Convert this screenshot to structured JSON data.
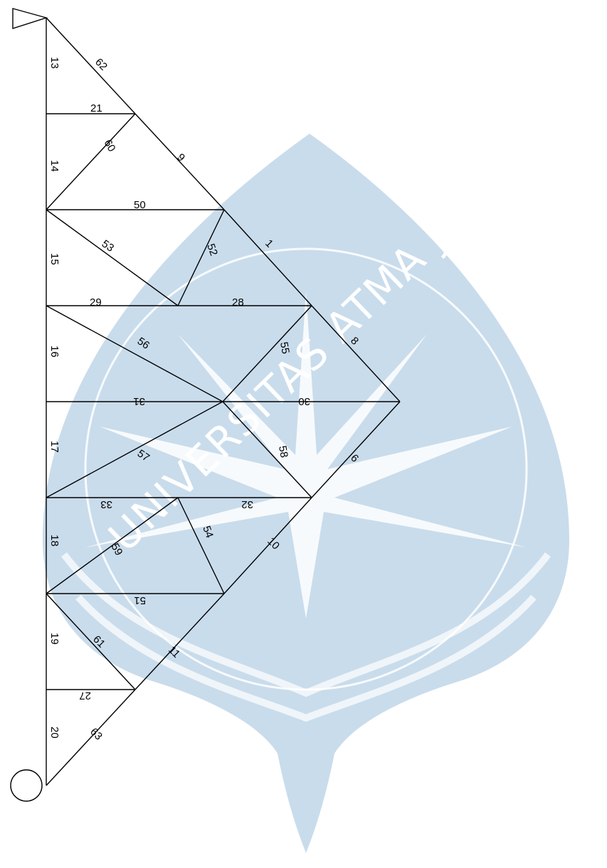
{
  "watermark": {
    "text": "UNIVERSITAS ATMA JAYA YOGYAKARTA",
    "color": "#c9dcec"
  },
  "colors": {
    "line": "#000000",
    "background": "#ffffff"
  },
  "members": [
    {
      "id": "m-13",
      "label": "13",
      "rot": 90
    },
    {
      "id": "m-62",
      "label": "62",
      "rot": 45
    },
    {
      "id": "m-21",
      "label": "21",
      "rot": 0
    },
    {
      "id": "m-14",
      "label": "14",
      "rot": 90
    },
    {
      "id": "m-60",
      "label": "60",
      "rot": 60
    },
    {
      "id": "m-9",
      "label": "9",
      "rot": 45
    },
    {
      "id": "m-50",
      "label": "50",
      "rot": 0
    },
    {
      "id": "m-15",
      "label": "15",
      "rot": 90
    },
    {
      "id": "m-53",
      "label": "53",
      "rot": 35
    },
    {
      "id": "m-52",
      "label": "52",
      "rot": 70
    },
    {
      "id": "m-1",
      "label": "1",
      "rot": 45
    },
    {
      "id": "m-29",
      "label": "29",
      "rot": 0
    },
    {
      "id": "m-28",
      "label": "28",
      "rot": 0
    },
    {
      "id": "m-16",
      "label": "16",
      "rot": 90
    },
    {
      "id": "m-56",
      "label": "56",
      "rot": 35
    },
    {
      "id": "m-55",
      "label": "55",
      "rot": 80
    },
    {
      "id": "m-8",
      "label": "8",
      "rot": 45
    },
    {
      "id": "m-31",
      "label": "31",
      "rot": 180
    },
    {
      "id": "m-30",
      "label": "30",
      "rot": 180
    },
    {
      "id": "m-17",
      "label": "17",
      "rot": 90
    },
    {
      "id": "m-57",
      "label": "57",
      "rot": 35
    },
    {
      "id": "m-58",
      "label": "58",
      "rot": 80
    },
    {
      "id": "m-6",
      "label": "6",
      "rot": 45
    },
    {
      "id": "m-33",
      "label": "33",
      "rot": 180
    },
    {
      "id": "m-32",
      "label": "32",
      "rot": 180
    },
    {
      "id": "m-18",
      "label": "18",
      "rot": 90
    },
    {
      "id": "m-59",
      "label": "59",
      "rot": 60
    },
    {
      "id": "m-54",
      "label": "54",
      "rot": 70
    },
    {
      "id": "m-10",
      "label": "10",
      "rot": 45
    },
    {
      "id": "m-51",
      "label": "51",
      "rot": 180
    },
    {
      "id": "m-19",
      "label": "19",
      "rot": 90
    },
    {
      "id": "m-61",
      "label": "61",
      "rot": 45
    },
    {
      "id": "m-11",
      "label": "11",
      "rot": 45
    },
    {
      "id": "m-27",
      "label": "27",
      "rot": 180
    },
    {
      "id": "m-20",
      "label": "20",
      "rot": 90
    },
    {
      "id": "m-63",
      "label": "63",
      "rot": 45
    }
  ]
}
